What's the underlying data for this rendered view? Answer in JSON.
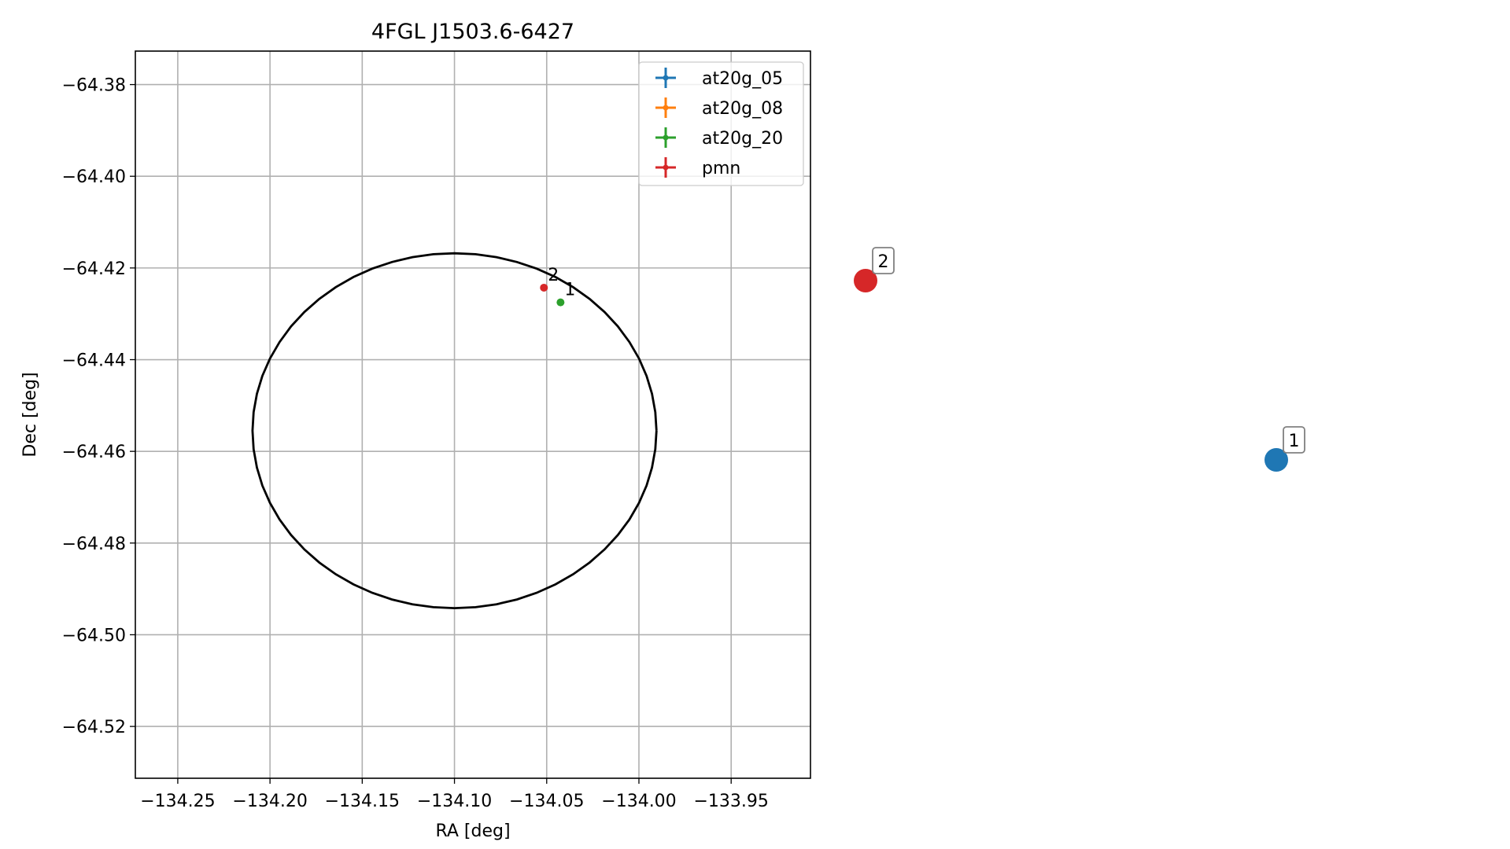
{
  "chart_data": {
    "type": "scatter",
    "title": "4FGL J1503.6-6427",
    "xlabel": "RA [deg]",
    "ylabel": "Dec [deg]",
    "xlim": [
      -134.273,
      -133.907
    ],
    "ylim": [
      -64.5313,
      -64.3727
    ],
    "x_ticks": [
      -134.25,
      -134.2,
      -134.15,
      -134.1,
      -134.05,
      -134.0,
      -133.95
    ],
    "x_tick_labels": [
      "−134.25",
      "−134.20",
      "−134.15",
      "−134.10",
      "−134.05",
      "−134.00",
      "−133.95"
    ],
    "y_ticks": [
      -64.38,
      -64.4,
      -64.42,
      -64.44,
      -64.46,
      -64.48,
      -64.5,
      -64.52
    ],
    "y_tick_labels": [
      "−64.38",
      "−64.40",
      "−64.42",
      "−64.44",
      "−64.46",
      "−64.48",
      "−64.50",
      "−64.52"
    ],
    "grid": true,
    "legend": {
      "position": "top-right",
      "entries": [
        {
          "label": "at20g_05",
          "color": "#1f77b4"
        },
        {
          "label": "at20g_08",
          "color": "#ff7f0e"
        },
        {
          "label": "at20g_20",
          "color": "#2ca02c"
        },
        {
          "label": "pmn",
          "color": "#d62728"
        }
      ]
    },
    "ellipse": {
      "center_ra": -134.1,
      "center_dec": -64.4555,
      "semi_ra": 0.1095,
      "semi_dec": 0.0387,
      "color": "#000000"
    },
    "points": [
      {
        "ra": -134.0425,
        "dec": -64.4275,
        "label": "1",
        "color": "#2ca02c"
      },
      {
        "ra": -134.0515,
        "dec": -64.4243,
        "label": "2",
        "color": "#d62728"
      }
    ],
    "outside_markers": [
      {
        "label": "2",
        "color": "#d62728"
      },
      {
        "label": "1",
        "color": "#1f77b4"
      }
    ]
  }
}
